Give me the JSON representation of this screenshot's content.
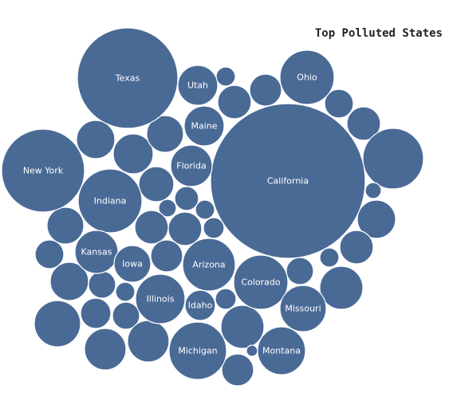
{
  "chart_data": {
    "type": "bubble",
    "title": "Top Polluted States",
    "bubble_color": "#4a6a96",
    "labeled_bubbles": [
      {
        "label": "California"
      },
      {
        "label": "Texas"
      },
      {
        "label": "New York"
      },
      {
        "label": "Indiana"
      },
      {
        "label": "Ohio"
      },
      {
        "label": "Colorado"
      },
      {
        "label": "Michigan"
      },
      {
        "label": "Arizona"
      },
      {
        "label": "Montana"
      },
      {
        "label": "Missouri"
      },
      {
        "label": "Illinois"
      },
      {
        "label": "Utah"
      },
      {
        "label": "Maine"
      },
      {
        "label": "Florida"
      },
      {
        "label": "Kansas"
      },
      {
        "label": "Iowa"
      },
      {
        "label": "Idaho"
      }
    ]
  }
}
